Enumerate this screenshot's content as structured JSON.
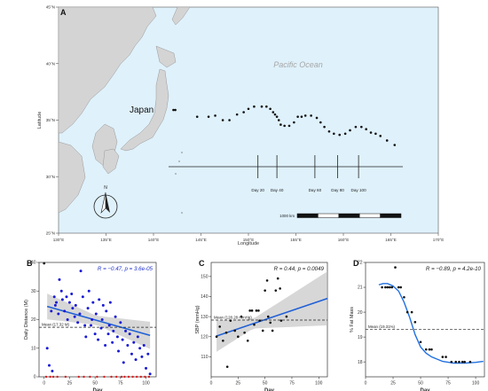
{
  "chart_data": [
    {
      "panel": "A",
      "type": "map",
      "xlabel": "Longitude",
      "ylabel": "Latitude",
      "x_ticks": [
        "130°E",
        "135°E",
        "140°E",
        "145°E",
        "150°E",
        "155°E",
        "160°E",
        "165°E",
        "170°E"
      ],
      "y_ticks": [
        "25°N",
        "30°N",
        "35°N",
        "40°N",
        "45°N"
      ],
      "xlim": [
        130,
        170
      ],
      "ylim": [
        25,
        45
      ],
      "labels": {
        "country": "Japan",
        "ocean": "Pacific Ocean",
        "north": "N",
        "scale": "1000 km"
      },
      "track": [
        [
          142.1,
          35.9
        ],
        [
          142.3,
          35.9
        ],
        [
          144.6,
          35.3
        ],
        [
          145.8,
          35.3
        ],
        [
          146.5,
          35.4
        ],
        [
          147.3,
          35.0
        ],
        [
          148.0,
          35.0
        ],
        [
          148.8,
          35.5
        ],
        [
          149.5,
          35.7
        ],
        [
          150.0,
          36.0
        ],
        [
          150.6,
          36.2
        ],
        [
          151.4,
          36.2
        ],
        [
          151.9,
          36.2
        ],
        [
          152.3,
          36.0
        ],
        [
          152.6,
          35.7
        ],
        [
          152.8,
          35.5
        ],
        [
          153.0,
          35.3
        ],
        [
          153.2,
          35.0
        ],
        [
          153.4,
          34.6
        ],
        [
          153.8,
          34.5
        ],
        [
          154.3,
          34.5
        ],
        [
          154.8,
          34.8
        ],
        [
          155.2,
          35.3
        ],
        [
          155.6,
          35.3
        ],
        [
          156.0,
          35.4
        ],
        [
          156.6,
          35.4
        ],
        [
          157.2,
          35.2
        ],
        [
          157.6,
          34.8
        ],
        [
          158.0,
          34.4
        ],
        [
          158.5,
          34.0
        ],
        [
          159.0,
          33.8
        ],
        [
          159.6,
          33.7
        ],
        [
          160.2,
          33.8
        ],
        [
          160.7,
          34.1
        ],
        [
          161.3,
          34.4
        ],
        [
          161.9,
          34.4
        ],
        [
          162.4,
          34.2
        ],
        [
          162.9,
          33.9
        ],
        [
          163.4,
          33.8
        ],
        [
          163.9,
          33.6
        ],
        [
          164.6,
          33.2
        ],
        [
          165.4,
          32.8
        ]
      ],
      "timeline": [
        {
          "label": "Day 20",
          "lon": 151.0
        },
        {
          "label": "Day 40",
          "lon": 153.0
        },
        {
          "label": "Day 60",
          "lon": 157.0
        },
        {
          "label": "Day 80",
          "lon": 159.4
        },
        {
          "label": "Day 100",
          "lon": 161.6
        }
      ]
    },
    {
      "panel": "B",
      "type": "scatter",
      "xlabel": "Day",
      "ylabel": "Daily Distance (M)",
      "xlim": [
        -5,
        110
      ],
      "ylim": [
        0,
        40
      ],
      "x_ticks": [
        0,
        25,
        50,
        75,
        100
      ],
      "y_ticks": [
        0,
        10,
        20,
        30,
        40
      ],
      "annotation": "R = −0.47, p = 3.6e-05",
      "mean_label": "Mean (17.32 M)",
      "mean": 17.32,
      "regression": {
        "intercept": 24.9,
        "slope": -0.1
      },
      "points": [
        [
          3,
          10
        ],
        [
          5,
          4
        ],
        [
          7,
          23
        ],
        [
          8,
          2
        ],
        [
          10,
          28
        ],
        [
          11,
          25
        ],
        [
          12,
          26
        ],
        [
          14,
          22
        ],
        [
          15,
          34
        ],
        [
          17,
          30
        ],
        [
          18,
          27
        ],
        [
          20,
          23
        ],
        [
          22,
          28
        ],
        [
          23,
          20
        ],
        [
          25,
          26
        ],
        [
          27,
          29
        ],
        [
          28,
          24
        ],
        [
          30,
          21
        ],
        [
          31,
          25
        ],
        [
          33,
          19
        ],
        [
          35,
          22
        ],
        [
          36,
          37
        ],
        [
          38,
          28
        ],
        [
          40,
          18
        ],
        [
          41,
          14
        ],
        [
          43,
          24
        ],
        [
          44,
          30
        ],
        [
          46,
          18
        ],
        [
          47,
          20
        ],
        [
          48,
          26
        ],
        [
          50,
          15
        ],
        [
          51,
          22
        ],
        [
          53,
          13
        ],
        [
          54,
          27
        ],
        [
          56,
          17
        ],
        [
          57,
          20
        ],
        [
          58,
          25
        ],
        [
          60,
          11
        ],
        [
          61,
          23
        ],
        [
          63,
          15
        ],
        [
          64,
          18
        ],
        [
          65,
          26
        ],
        [
          67,
          12
        ],
        [
          68,
          16
        ],
        [
          70,
          21
        ],
        [
          72,
          14
        ],
        [
          73,
          9
        ],
        [
          75,
          19
        ],
        [
          77,
          13
        ],
        [
          78,
          5
        ],
        [
          80,
          16
        ],
        [
          82,
          11
        ],
        [
          84,
          15
        ],
        [
          86,
          8
        ],
        [
          88,
          12
        ],
        [
          90,
          6
        ],
        [
          92,
          14
        ],
        [
          94,
          10
        ],
        [
          96,
          7
        ],
        [
          98,
          11
        ],
        [
          100,
          3
        ],
        [
          102,
          8
        ],
        [
          104,
          1
        ]
      ],
      "zero_days": [
        2,
        6,
        9,
        13,
        21,
        34,
        39,
        45,
        52,
        59,
        66,
        71,
        76,
        79,
        83,
        87,
        91,
        95,
        99,
        103
      ],
      "outlier": [
        0,
        41
      ]
    },
    {
      "panel": "C",
      "type": "scatter",
      "xlabel": "Day",
      "ylabel": "SBP (mmHg)",
      "xlim": [
        0,
        108
      ],
      "ylim": [
        100,
        157
      ],
      "x_ticks": [
        0,
        25,
        50,
        75,
        100
      ],
      "y_ticks": [
        110,
        120,
        130,
        140,
        150
      ],
      "annotation": "R = 0.44, p = 0.0049",
      "mean_label": "Mean (128.28 mmHg)",
      "mean": 128.28,
      "regression": {
        "intercept": 119.4,
        "slope": 0.182
      },
      "points": [
        [
          5,
          120
        ],
        [
          8,
          125
        ],
        [
          11,
          118
        ],
        [
          14,
          122
        ],
        [
          15,
          105
        ],
        [
          18,
          128
        ],
        [
          22,
          123
        ],
        [
          25,
          120
        ],
        [
          28,
          130
        ],
        [
          31,
          122
        ],
        [
          34,
          118
        ],
        [
          36,
          133
        ],
        [
          38,
          133
        ],
        [
          40,
          126
        ],
        [
          42,
          133
        ],
        [
          44,
          133
        ],
        [
          45,
          128
        ],
        [
          48,
          123
        ],
        [
          50,
          143
        ],
        [
          52,
          148
        ],
        [
          53,
          130
        ],
        [
          55,
          127
        ],
        [
          57,
          123
        ],
        [
          60,
          143
        ],
        [
          62,
          149
        ],
        [
          64,
          144
        ],
        [
          65,
          128
        ],
        [
          70,
          130
        ]
      ]
    },
    {
      "panel": "D",
      "type": "scatter",
      "xlabel": "Day",
      "ylabel": "% Fat Mass",
      "xlim": [
        0,
        108
      ],
      "ylim": [
        17.4,
        22
      ],
      "x_ticks": [
        0,
        25,
        50,
        75,
        100
      ],
      "y_ticks": [
        18,
        19,
        20,
        21,
        22
      ],
      "annotation": "R = −0.89, p = 4.2e-10",
      "mean_label": "Mean (19.31%)",
      "mean": 19.31,
      "points": [
        [
          15,
          21.0
        ],
        [
          18,
          21.0
        ],
        [
          20,
          21.0
        ],
        [
          22,
          21.0
        ],
        [
          24,
          21.0
        ],
        [
          27,
          21.8
        ],
        [
          30,
          21.0
        ],
        [
          32,
          21.0
        ],
        [
          35,
          20.6
        ],
        [
          38,
          20.0
        ],
        [
          42,
          20.0
        ],
        [
          45,
          19.6
        ],
        [
          50,
          18.8
        ],
        [
          55,
          18.5
        ],
        [
          58,
          18.5
        ],
        [
          60,
          18.5
        ],
        [
          70,
          18.2
        ],
        [
          73,
          18.2
        ],
        [
          78,
          18.0
        ],
        [
          82,
          18.0
        ],
        [
          85,
          18.0
        ],
        [
          88,
          18.0
        ],
        [
          90,
          18.0
        ],
        [
          95,
          18.0
        ]
      ],
      "smooth": [
        [
          12,
          21.1
        ],
        [
          16,
          21.15
        ],
        [
          20,
          21.15
        ],
        [
          25,
          21.05
        ],
        [
          30,
          20.85
        ],
        [
          35,
          20.4
        ],
        [
          40,
          19.8
        ],
        [
          45,
          19.1
        ],
        [
          50,
          18.6
        ],
        [
          55,
          18.35
        ],
        [
          60,
          18.2
        ],
        [
          70,
          18.02
        ],
        [
          80,
          17.95
        ],
        [
          90,
          17.95
        ],
        [
          100,
          17.98
        ],
        [
          107,
          18.02
        ]
      ]
    }
  ]
}
